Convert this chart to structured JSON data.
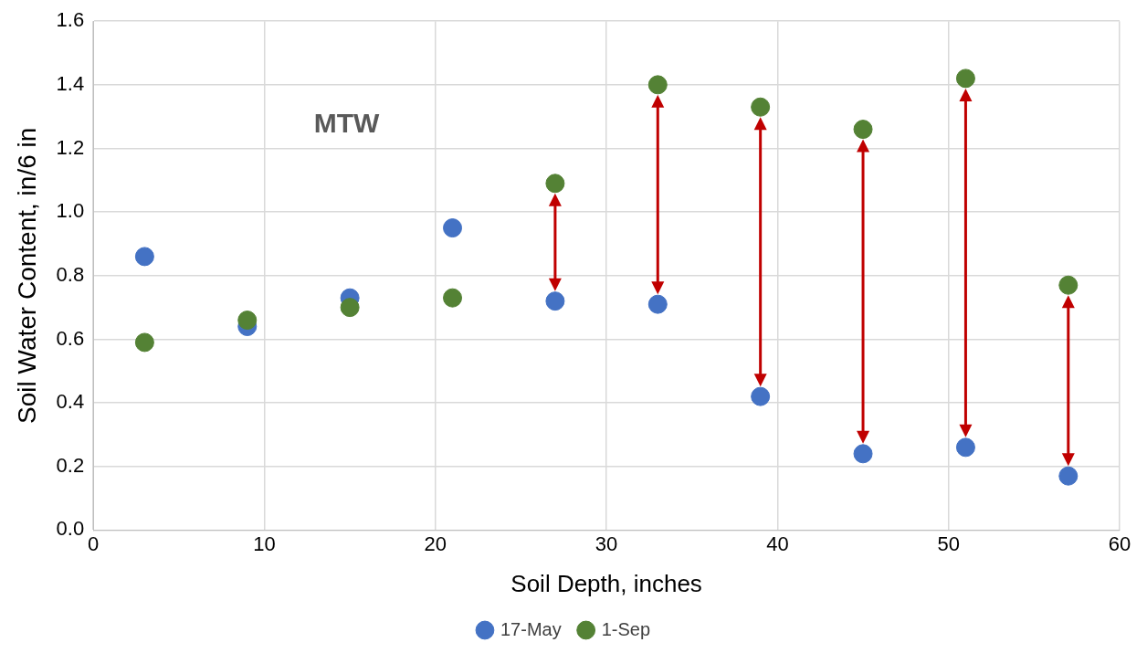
{
  "chart_data": {
    "type": "scatter",
    "xlabel": "Soil Depth, inches",
    "ylabel": "Soil Water Content, in/6 in",
    "x": [
      3,
      9,
      15,
      21,
      27,
      33,
      39,
      45,
      51,
      57
    ],
    "series": [
      {
        "name": "17-May",
        "color": "#4472c4",
        "values": [
          0.86,
          0.64,
          0.73,
          0.95,
          0.72,
          0.71,
          0.42,
          0.24,
          0.26,
          0.17
        ]
      },
      {
        "name": "1-Sep",
        "color": "#548235",
        "values": [
          0.59,
          0.66,
          0.7,
          0.73,
          1.09,
          1.4,
          1.33,
          1.26,
          1.42,
          0.77
        ]
      }
    ],
    "annotations": [
      "MTW"
    ],
    "xlim": [
      0,
      60
    ],
    "xticks": [
      0,
      10,
      20,
      30,
      40,
      50,
      60
    ],
    "ylim": [
      0,
      1.6
    ],
    "yticks": [
      {
        "value": 0,
        "label": "0.0"
      },
      {
        "value": 0.2,
        "label": "0.2"
      },
      {
        "value": 0.4,
        "label": "0.4"
      },
      {
        "value": 0.6,
        "label": "0.6"
      },
      {
        "value": 0.8,
        "label": "0.8"
      },
      {
        "value": 1,
        "label": "1.0"
      },
      {
        "value": 1.2,
        "label": "1.2"
      },
      {
        "value": 1.4,
        "label": "1.4"
      },
      {
        "value": 1.6,
        "label": "1.6"
      }
    ],
    "grid": true,
    "legend": "bottom",
    "marker": "circle"
  }
}
